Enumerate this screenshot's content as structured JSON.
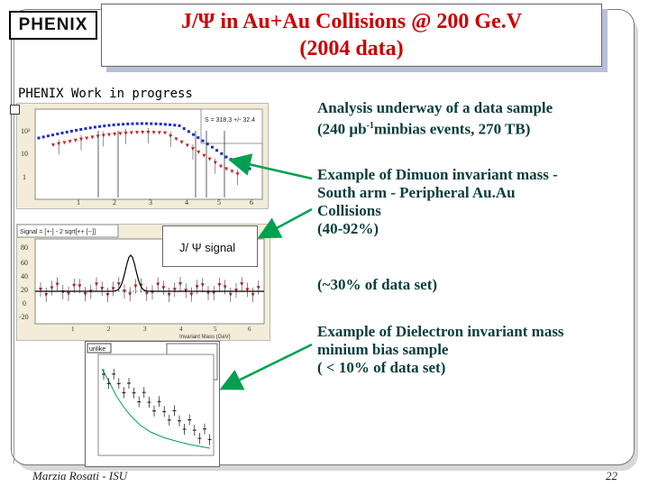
{
  "slide": {
    "logo_text": "PHENIX",
    "title_line1": "J/Ψ  in Au+Au Collisions @ 200 Ge.V",
    "title_line2": "(2004 data)",
    "wip_label": "PHENIX  Work in progress",
    "callout_label": "J/ Ψ  signal",
    "top_stat_text": "S = 318.3 +/- 32.4",
    "lower_panel_label": "Signal = [+-] - 2 sqrt[++ [--]]",
    "lower_xaxis_label": "Invariant Mass (GeV)",
    "ee_panel_label": "unlike",
    "text_block_1": "Analysis underway of a data sample",
    "text_block_1_line2_pre": "(240 ",
    "text_block_1_mu": "μ",
    "text_block_1_b": "b",
    "text_block_1_sup": "-1",
    "text_block_1_line2_post": "minbias  events, 270 TB)",
    "text_block_2": [
      "Example of Dimuon invariant mass -",
      "South arm - Peripheral Au.Au",
      "Collisions",
      "(40-92%)"
    ],
    "text_block_3": "(~30% of data set)",
    "text_block_4": [
      "Example of Dielectron invariant mass",
      "minium bias sample",
      "( < 10% of data set)"
    ],
    "footer_left": "Marzia Rosati  -  ISU",
    "footer_page": "22",
    "top_plot_yticks": [
      "10²",
      "10",
      "1"
    ],
    "top_plot_xticks": [
      "1",
      "2",
      "3",
      "4",
      "5",
      "6"
    ],
    "lower_plot_yticks": [
      "80",
      "60",
      "40",
      "20",
      "0",
      "-20"
    ],
    "lower_plot_xticks": [
      "1",
      "2",
      "3",
      "4",
      "5",
      "6"
    ],
    "colors": {
      "title": "#cc0000",
      "arrow": "#00a050",
      "blue_points": "#1a2cc8",
      "red_points": "#d02020"
    }
  }
}
